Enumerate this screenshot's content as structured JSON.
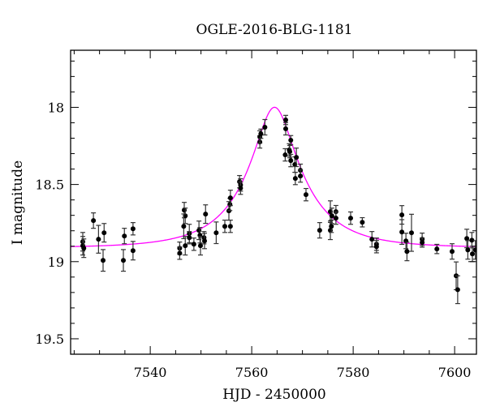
{
  "chart_data": {
    "type": "scatter",
    "title": "OGLE-2016-BLG-1181",
    "xlabel": "HJD - 2450000",
    "ylabel": "I magnitude",
    "xlim": [
      7524.3,
      7604.3
    ],
    "ylim": [
      19.6,
      17.63
    ],
    "y_inverted": true,
    "xticks": [
      7540,
      7560,
      7580,
      7600
    ],
    "xtick_labels": [
      "7540",
      "7560",
      "7580",
      "7600"
    ],
    "yticks": [
      18,
      18.5,
      19,
      19.5
    ],
    "ytick_labels": [
      "18",
      "18.5",
      "19",
      "19.5"
    ],
    "grid": false,
    "colors": {
      "data": "#000000",
      "model": "#ff00ff"
    },
    "series": [
      {
        "name": "data",
        "x": [
          7526.7,
          7526.7,
          7526.9,
          7528.8,
          7529.8,
          7530.7,
          7530.9,
          7534.7,
          7534.9,
          7536.6,
          7536.6,
          7545.8,
          7545.8,
          7546.7,
          7546.9,
          7546.6,
          7546.9,
          7547.7,
          7547.7,
          7548.6,
          7549.6,
          7549.8,
          7549.9,
          7550.6,
          7550.7,
          7550.9,
          7553.0,
          7554.7,
          7555.8,
          7555.5,
          7555.7,
          7555.8,
          7557.6,
          7557.8,
          7557.8,
          7561.6,
          7561.6,
          7561.8,
          7562.6,
          7566.7,
          7566.7,
          7566.6,
          7567.4,
          7567.7,
          7567.5,
          7567.7,
          7568.5,
          7568.8,
          7568.6,
          7569.6,
          7569.6,
          7570.7,
          7573.4,
          7575.5,
          7575.8,
          7575.5,
          7575.7,
          7576.6,
          7576.6,
          7579.5,
          7581.8,
          7583.7,
          7584.6,
          7584.6,
          7589.6,
          7589.6,
          7590.4,
          7590.6,
          7591.5,
          7593.6,
          7593.6,
          7596.5,
          7599.5,
          7600.3,
          7600.6,
          7602.4,
          7602.6,
          7603.4,
          7603.5,
          7604.1
        ],
        "y": [
          18.871,
          18.897,
          18.913,
          18.734,
          18.855,
          18.992,
          18.813,
          18.992,
          18.834,
          18.787,
          18.929,
          18.913,
          18.945,
          18.666,
          18.703,
          18.771,
          18.897,
          18.818,
          18.845,
          18.887,
          18.797,
          18.829,
          18.897,
          18.845,
          18.866,
          18.692,
          18.813,
          18.771,
          18.771,
          18.671,
          18.629,
          18.587,
          18.482,
          18.503,
          18.524,
          18.224,
          18.192,
          18.171,
          18.129,
          18.082,
          18.139,
          18.308,
          18.276,
          18.213,
          18.287,
          18.345,
          18.371,
          18.324,
          18.461,
          18.408,
          18.445,
          18.566,
          18.797,
          18.676,
          18.703,
          18.797,
          18.771,
          18.676,
          18.718,
          18.718,
          18.745,
          18.855,
          18.887,
          18.903,
          18.697,
          18.808,
          18.866,
          18.934,
          18.813,
          18.855,
          18.876,
          18.918,
          18.934,
          19.092,
          19.182,
          18.85,
          18.924,
          18.861,
          18.95,
          18.924
        ],
        "yerr": [
          0.06,
          0.06,
          0.06,
          0.05,
          0.09,
          0.07,
          0.06,
          0.07,
          0.05,
          0.04,
          0.06,
          0.04,
          0.04,
          0.05,
          0.05,
          0.08,
          0.06,
          0.06,
          0.04,
          0.04,
          0.06,
          0.05,
          0.06,
          0.04,
          0.05,
          0.06,
          0.07,
          0.04,
          0.04,
          0.06,
          0.04,
          0.05,
          0.04,
          0.04,
          0.04,
          0.04,
          0.04,
          0.03,
          0.05,
          0.03,
          0.04,
          0.04,
          0.04,
          0.03,
          0.04,
          0.04,
          0.05,
          0.06,
          0.04,
          0.04,
          0.04,
          0.04,
          0.05,
          0.07,
          0.05,
          0.06,
          0.04,
          0.04,
          0.04,
          0.04,
          0.03,
          0.05,
          0.04,
          0.04,
          0.06,
          0.08,
          0.05,
          0.06,
          0.12,
          0.04,
          0.03,
          0.03,
          0.05,
          0.09,
          0.09,
          0.06,
          0.06,
          0.05,
          0.05,
          0.06
        ]
      },
      {
        "name": "model",
        "kind": "point-lens fit",
        "t0": 7564.5,
        "u0": 0.3,
        "tE": 12.4,
        "baseline_mag": 18.91,
        "source_fraction": 0.537
      }
    ]
  }
}
